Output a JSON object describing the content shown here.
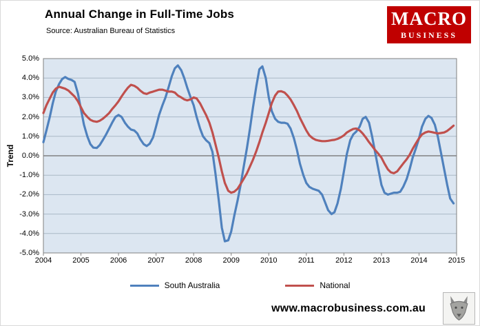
{
  "header": {
    "title": "Annual Change in Full-Time Jobs",
    "subtitle": "Source: Australian Bureau of Statistics"
  },
  "logo": {
    "line1": "MACRO",
    "line2": "BUSINESS",
    "bg_color": "#c00000",
    "text_color": "#ffffff"
  },
  "chart_data": {
    "type": "line",
    "title": "Annual Change in Full-Time Jobs",
    "xlabel": "",
    "ylabel": "Trend",
    "xlim": [
      2004,
      2015
    ],
    "ylim": [
      -5,
      5
    ],
    "grid": true,
    "legend_position": "bottom",
    "plot_bg": "#dce6f1",
    "gridline_color": "#a9b8c6",
    "zero_line_color": "#6e6e6e",
    "axis_color": "#808080",
    "x_ticks": [
      2004,
      2005,
      2006,
      2007,
      2008,
      2009,
      2010,
      2011,
      2012,
      2013,
      2014,
      2015
    ],
    "y_tick_values": [
      5,
      4,
      3,
      2,
      1,
      0,
      -1,
      -2,
      -3,
      -4,
      -5
    ],
    "y_tick_labels": [
      "5.0%",
      "4.0%",
      "3.0%",
      "2.0%",
      "1.0%",
      "0.0%",
      "-1.0%",
      "-2.0%",
      "-3.0%",
      "-4.0%",
      "-5.0%"
    ],
    "series": [
      {
        "name": "South Australia",
        "color": "#4f81bd",
        "points": [
          [
            2004.0,
            0.7
          ],
          [
            2004.08,
            1.3
          ],
          [
            2004.17,
            2.0
          ],
          [
            2004.25,
            2.7
          ],
          [
            2004.33,
            3.3
          ],
          [
            2004.42,
            3.7
          ],
          [
            2004.5,
            3.95
          ],
          [
            2004.58,
            4.05
          ],
          [
            2004.67,
            3.95
          ],
          [
            2004.75,
            3.9
          ],
          [
            2004.83,
            3.8
          ],
          [
            2004.92,
            3.2
          ],
          [
            2005.0,
            2.4
          ],
          [
            2005.08,
            1.6
          ],
          [
            2005.17,
            1.0
          ],
          [
            2005.25,
            0.6
          ],
          [
            2005.33,
            0.42
          ],
          [
            2005.42,
            0.4
          ],
          [
            2005.5,
            0.55
          ],
          [
            2005.58,
            0.8
          ],
          [
            2005.67,
            1.1
          ],
          [
            2005.75,
            1.4
          ],
          [
            2005.83,
            1.7
          ],
          [
            2005.92,
            2.0
          ],
          [
            2006.0,
            2.1
          ],
          [
            2006.08,
            2.0
          ],
          [
            2006.17,
            1.7
          ],
          [
            2006.25,
            1.5
          ],
          [
            2006.33,
            1.35
          ],
          [
            2006.42,
            1.3
          ],
          [
            2006.5,
            1.15
          ],
          [
            2006.58,
            0.85
          ],
          [
            2006.67,
            0.6
          ],
          [
            2006.75,
            0.5
          ],
          [
            2006.83,
            0.62
          ],
          [
            2006.92,
            0.95
          ],
          [
            2007.0,
            1.5
          ],
          [
            2007.08,
            2.1
          ],
          [
            2007.17,
            2.6
          ],
          [
            2007.25,
            3.0
          ],
          [
            2007.33,
            3.5
          ],
          [
            2007.42,
            4.1
          ],
          [
            2007.5,
            4.5
          ],
          [
            2007.58,
            4.65
          ],
          [
            2007.67,
            4.4
          ],
          [
            2007.75,
            4.0
          ],
          [
            2007.83,
            3.5
          ],
          [
            2007.92,
            3.0
          ],
          [
            2008.0,
            2.6
          ],
          [
            2008.08,
            2.0
          ],
          [
            2008.17,
            1.4
          ],
          [
            2008.25,
            1.0
          ],
          [
            2008.33,
            0.8
          ],
          [
            2008.42,
            0.65
          ],
          [
            2008.5,
            0.2
          ],
          [
            2008.58,
            -0.9
          ],
          [
            2008.67,
            -2.3
          ],
          [
            2008.75,
            -3.7
          ],
          [
            2008.83,
            -4.4
          ],
          [
            2008.92,
            -4.35
          ],
          [
            2009.0,
            -3.9
          ],
          [
            2009.08,
            -3.1
          ],
          [
            2009.17,
            -2.3
          ],
          [
            2009.25,
            -1.5
          ],
          [
            2009.33,
            -0.6
          ],
          [
            2009.42,
            0.4
          ],
          [
            2009.5,
            1.4
          ],
          [
            2009.58,
            2.5
          ],
          [
            2009.67,
            3.6
          ],
          [
            2009.75,
            4.45
          ],
          [
            2009.83,
            4.6
          ],
          [
            2009.92,
            4.0
          ],
          [
            2010.0,
            3.0
          ],
          [
            2010.08,
            2.3
          ],
          [
            2010.17,
            1.9
          ],
          [
            2010.25,
            1.75
          ],
          [
            2010.33,
            1.7
          ],
          [
            2010.42,
            1.7
          ],
          [
            2010.5,
            1.65
          ],
          [
            2010.58,
            1.4
          ],
          [
            2010.67,
            0.9
          ],
          [
            2010.75,
            0.3
          ],
          [
            2010.83,
            -0.4
          ],
          [
            2010.92,
            -1.0
          ],
          [
            2011.0,
            -1.4
          ],
          [
            2011.08,
            -1.6
          ],
          [
            2011.17,
            -1.7
          ],
          [
            2011.25,
            -1.75
          ],
          [
            2011.33,
            -1.8
          ],
          [
            2011.42,
            -2.0
          ],
          [
            2011.5,
            -2.4
          ],
          [
            2011.58,
            -2.8
          ],
          [
            2011.67,
            -3.0
          ],
          [
            2011.75,
            -2.9
          ],
          [
            2011.83,
            -2.45
          ],
          [
            2011.92,
            -1.7
          ],
          [
            2012.0,
            -0.8
          ],
          [
            2012.08,
            0.1
          ],
          [
            2012.17,
            0.8
          ],
          [
            2012.25,
            1.1
          ],
          [
            2012.33,
            1.25
          ],
          [
            2012.42,
            1.5
          ],
          [
            2012.5,
            1.9
          ],
          [
            2012.58,
            2.0
          ],
          [
            2012.67,
            1.7
          ],
          [
            2012.75,
            1.0
          ],
          [
            2012.83,
            0.2
          ],
          [
            2012.92,
            -0.7
          ],
          [
            2013.0,
            -1.5
          ],
          [
            2013.08,
            -1.9
          ],
          [
            2013.17,
            -2.0
          ],
          [
            2013.25,
            -1.95
          ],
          [
            2013.33,
            -1.9
          ],
          [
            2013.42,
            -1.9
          ],
          [
            2013.5,
            -1.85
          ],
          [
            2013.58,
            -1.6
          ],
          [
            2013.67,
            -1.2
          ],
          [
            2013.75,
            -0.7
          ],
          [
            2013.83,
            -0.1
          ],
          [
            2013.92,
            0.4
          ],
          [
            2014.0,
            0.9
          ],
          [
            2014.08,
            1.5
          ],
          [
            2014.17,
            1.9
          ],
          [
            2014.25,
            2.05
          ],
          [
            2014.33,
            1.95
          ],
          [
            2014.42,
            1.6
          ],
          [
            2014.5,
            1.0
          ],
          [
            2014.58,
            0.2
          ],
          [
            2014.67,
            -0.7
          ],
          [
            2014.75,
            -1.5
          ],
          [
            2014.83,
            -2.2
          ],
          [
            2014.92,
            -2.45
          ]
        ]
      },
      {
        "name": "National",
        "color": "#c0504d",
        "points": [
          [
            2004.0,
            2.2
          ],
          [
            2004.08,
            2.6
          ],
          [
            2004.17,
            2.95
          ],
          [
            2004.25,
            3.25
          ],
          [
            2004.33,
            3.45
          ],
          [
            2004.42,
            3.55
          ],
          [
            2004.5,
            3.5
          ],
          [
            2004.58,
            3.45
          ],
          [
            2004.67,
            3.35
          ],
          [
            2004.75,
            3.2
          ],
          [
            2004.83,
            3.05
          ],
          [
            2004.92,
            2.8
          ],
          [
            2005.0,
            2.5
          ],
          [
            2005.08,
            2.2
          ],
          [
            2005.17,
            2.0
          ],
          [
            2005.25,
            1.85
          ],
          [
            2005.33,
            1.78
          ],
          [
            2005.42,
            1.75
          ],
          [
            2005.5,
            1.8
          ],
          [
            2005.58,
            1.9
          ],
          [
            2005.67,
            2.05
          ],
          [
            2005.75,
            2.2
          ],
          [
            2005.83,
            2.4
          ],
          [
            2005.92,
            2.6
          ],
          [
            2006.0,
            2.8
          ],
          [
            2006.08,
            3.05
          ],
          [
            2006.17,
            3.3
          ],
          [
            2006.25,
            3.5
          ],
          [
            2006.33,
            3.65
          ],
          [
            2006.42,
            3.6
          ],
          [
            2006.5,
            3.5
          ],
          [
            2006.58,
            3.35
          ],
          [
            2006.67,
            3.22
          ],
          [
            2006.75,
            3.18
          ],
          [
            2006.83,
            3.25
          ],
          [
            2006.92,
            3.3
          ],
          [
            2007.0,
            3.35
          ],
          [
            2007.08,
            3.4
          ],
          [
            2007.17,
            3.4
          ],
          [
            2007.25,
            3.35
          ],
          [
            2007.33,
            3.3
          ],
          [
            2007.42,
            3.3
          ],
          [
            2007.5,
            3.25
          ],
          [
            2007.58,
            3.1
          ],
          [
            2007.67,
            3.0
          ],
          [
            2007.75,
            2.9
          ],
          [
            2007.83,
            2.85
          ],
          [
            2007.92,
            2.9
          ],
          [
            2008.0,
            3.0
          ],
          [
            2008.08,
            2.95
          ],
          [
            2008.17,
            2.7
          ],
          [
            2008.25,
            2.4
          ],
          [
            2008.33,
            2.1
          ],
          [
            2008.42,
            1.7
          ],
          [
            2008.5,
            1.2
          ],
          [
            2008.58,
            0.6
          ],
          [
            2008.67,
            -0.1
          ],
          [
            2008.75,
            -0.8
          ],
          [
            2008.83,
            -1.4
          ],
          [
            2008.92,
            -1.8
          ],
          [
            2009.0,
            -1.9
          ],
          [
            2009.08,
            -1.85
          ],
          [
            2009.17,
            -1.7
          ],
          [
            2009.25,
            -1.45
          ],
          [
            2009.33,
            -1.2
          ],
          [
            2009.42,
            -0.9
          ],
          [
            2009.5,
            -0.55
          ],
          [
            2009.58,
            -0.2
          ],
          [
            2009.67,
            0.25
          ],
          [
            2009.75,
            0.7
          ],
          [
            2009.83,
            1.2
          ],
          [
            2009.92,
            1.7
          ],
          [
            2010.0,
            2.2
          ],
          [
            2010.08,
            2.7
          ],
          [
            2010.17,
            3.1
          ],
          [
            2010.25,
            3.3
          ],
          [
            2010.33,
            3.32
          ],
          [
            2010.42,
            3.25
          ],
          [
            2010.5,
            3.1
          ],
          [
            2010.58,
            2.9
          ],
          [
            2010.67,
            2.6
          ],
          [
            2010.75,
            2.3
          ],
          [
            2010.83,
            1.95
          ],
          [
            2010.92,
            1.6
          ],
          [
            2011.0,
            1.3
          ],
          [
            2011.08,
            1.05
          ],
          [
            2011.17,
            0.9
          ],
          [
            2011.25,
            0.82
          ],
          [
            2011.33,
            0.78
          ],
          [
            2011.42,
            0.75
          ],
          [
            2011.5,
            0.75
          ],
          [
            2011.58,
            0.77
          ],
          [
            2011.67,
            0.8
          ],
          [
            2011.75,
            0.82
          ],
          [
            2011.83,
            0.87
          ],
          [
            2011.92,
            0.95
          ],
          [
            2012.0,
            1.05
          ],
          [
            2012.08,
            1.2
          ],
          [
            2012.17,
            1.3
          ],
          [
            2012.25,
            1.38
          ],
          [
            2012.33,
            1.4
          ],
          [
            2012.42,
            1.3
          ],
          [
            2012.5,
            1.15
          ],
          [
            2012.58,
            0.95
          ],
          [
            2012.67,
            0.7
          ],
          [
            2012.75,
            0.5
          ],
          [
            2012.83,
            0.3
          ],
          [
            2012.92,
            0.1
          ],
          [
            2013.0,
            -0.1
          ],
          [
            2013.08,
            -0.4
          ],
          [
            2013.17,
            -0.7
          ],
          [
            2013.25,
            -0.85
          ],
          [
            2013.33,
            -0.9
          ],
          [
            2013.42,
            -0.8
          ],
          [
            2013.5,
            -0.6
          ],
          [
            2013.58,
            -0.4
          ],
          [
            2013.67,
            -0.18
          ],
          [
            2013.75,
            0.05
          ],
          [
            2013.83,
            0.35
          ],
          [
            2013.92,
            0.65
          ],
          [
            2014.0,
            0.9
          ],
          [
            2014.08,
            1.1
          ],
          [
            2014.17,
            1.2
          ],
          [
            2014.25,
            1.25
          ],
          [
            2014.33,
            1.22
          ],
          [
            2014.42,
            1.18
          ],
          [
            2014.5,
            1.15
          ],
          [
            2014.58,
            1.17
          ],
          [
            2014.67,
            1.2
          ],
          [
            2014.75,
            1.28
          ],
          [
            2014.83,
            1.4
          ],
          [
            2014.92,
            1.55
          ]
        ]
      }
    ]
  },
  "footer": {
    "url": "www.macrobusiness.com.au"
  }
}
